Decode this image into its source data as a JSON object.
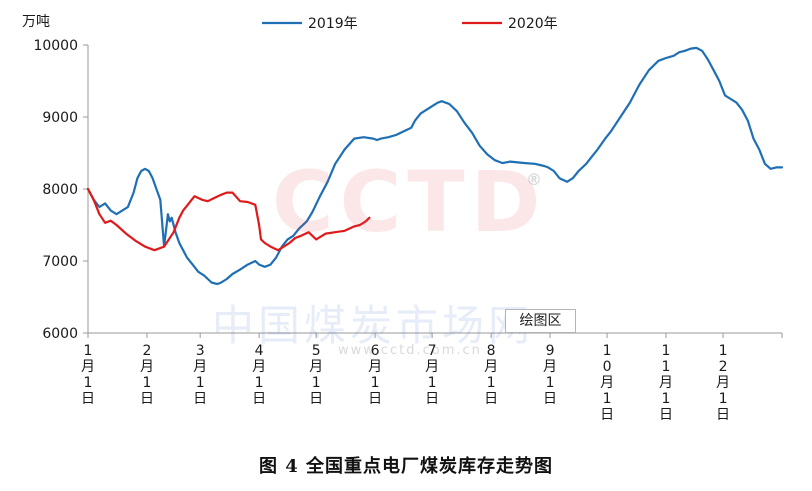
{
  "chart_data": {
    "type": "line",
    "unit_label": "万吨",
    "ylim": [
      6000,
      10000
    ],
    "yticks": [
      6000,
      7000,
      8000,
      9000,
      10000
    ],
    "xlim_days": [
      0,
      365
    ],
    "month_labels": [
      "1月1日",
      "2月1日",
      "3月1日",
      "4月1日",
      "5月1日",
      "6月1日",
      "7月1日",
      "8月1日",
      "9月1日",
      "10月1日",
      "11月1日",
      "12月1日"
    ],
    "month_days": [
      0,
      31,
      59,
      90,
      120,
      151,
      181,
      212,
      243,
      273,
      304,
      334
    ],
    "grid": false,
    "legend_position": "top",
    "series": [
      {
        "name": "2019年",
        "color": "#1f6fb4",
        "x": [
          0,
          3,
          6,
          9,
          12,
          15,
          18,
          21,
          24,
          26,
          28,
          30,
          32,
          34,
          36,
          38,
          40,
          42,
          43,
          44,
          46,
          48,
          50,
          52,
          55,
          58,
          61,
          63,
          65,
          68,
          70,
          73,
          76,
          80,
          84,
          88,
          90,
          93,
          96,
          99,
          102,
          105,
          108,
          111,
          115,
          118,
          122,
          126,
          130,
          135,
          140,
          145,
          150,
          152,
          154,
          158,
          162,
          166,
          170,
          172,
          175,
          178,
          181,
          184,
          186,
          190,
          194,
          198,
          202,
          206,
          210,
          214,
          218,
          222,
          226,
          230,
          235,
          240,
          242,
          245,
          248,
          252,
          255,
          258,
          260,
          262,
          265,
          268,
          272,
          275,
          280,
          285,
          290,
          295,
          300,
          304,
          308,
          311,
          314,
          317,
          320,
          323,
          326,
          329,
          332,
          335,
          338,
          341,
          344,
          347,
          350,
          353,
          356,
          359,
          362,
          365
        ],
        "y": [
          8000,
          7850,
          7750,
          7800,
          7700,
          7650,
          7700,
          7750,
          7950,
          8150,
          8250,
          8280,
          8250,
          8150,
          8000,
          7850,
          7200,
          7650,
          7550,
          7600,
          7400,
          7250,
          7150,
          7050,
          6950,
          6850,
          6800,
          6750,
          6700,
          6680,
          6700,
          6750,
          6820,
          6880,
          6950,
          7000,
          6950,
          6920,
          6950,
          7050,
          7200,
          7300,
          7350,
          7450,
          7550,
          7680,
          7900,
          8100,
          8350,
          8550,
          8700,
          8720,
          8700,
          8680,
          8700,
          8720,
          8750,
          8800,
          8850,
          8950,
          9050,
          9100,
          9150,
          9200,
          9220,
          9180,
          9080,
          8920,
          8780,
          8600,
          8480,
          8400,
          8360,
          8380,
          8370,
          8360,
          8350,
          8320,
          8300,
          8250,
          8150,
          8100,
          8150,
          8250,
          8300,
          8350,
          8450,
          8550,
          8700,
          8800,
          9000,
          9200,
          9450,
          9650,
          9780,
          9820,
          9850,
          9900,
          9920,
          9950,
          9960,
          9920,
          9800,
          9650,
          9500,
          9300,
          9250,
          9200,
          9100,
          8950,
          8700,
          8550,
          8350,
          8280,
          8300,
          8300
        ]
      },
      {
        "name": "2020年",
        "color": "#e01a1a",
        "x": [
          0,
          3,
          6,
          9,
          12,
          15,
          20,
          25,
          30,
          35,
          40,
          45,
          48,
          50,
          53,
          56,
          60,
          63,
          66,
          70,
          73,
          76,
          80,
          84,
          86,
          88,
          90,
          91,
          93,
          96,
          100,
          103,
          106,
          109,
          112,
          116,
          120,
          125,
          130,
          135,
          140,
          143,
          146,
          148
        ],
        "y": [
          8000,
          7850,
          7650,
          7530,
          7560,
          7500,
          7380,
          7280,
          7200,
          7150,
          7200,
          7400,
          7600,
          7700,
          7800,
          7900,
          7850,
          7830,
          7870,
          7920,
          7950,
          7950,
          7830,
          7820,
          7800,
          7780,
          7500,
          7300,
          7250,
          7200,
          7150,
          7200,
          7250,
          7320,
          7350,
          7400,
          7300,
          7380,
          7400,
          7420,
          7480,
          7500,
          7550,
          7600
        ]
      }
    ]
  },
  "caption": "图 4  全国重点电厂煤炭库存走势图",
  "plot_area_label": "绘图区",
  "watermark": {
    "logo_text": "CCTD",
    "registered_mark": "®",
    "chinese_text": "中国煤炭市场网",
    "url_text": "www.cctd.com.cn"
  }
}
